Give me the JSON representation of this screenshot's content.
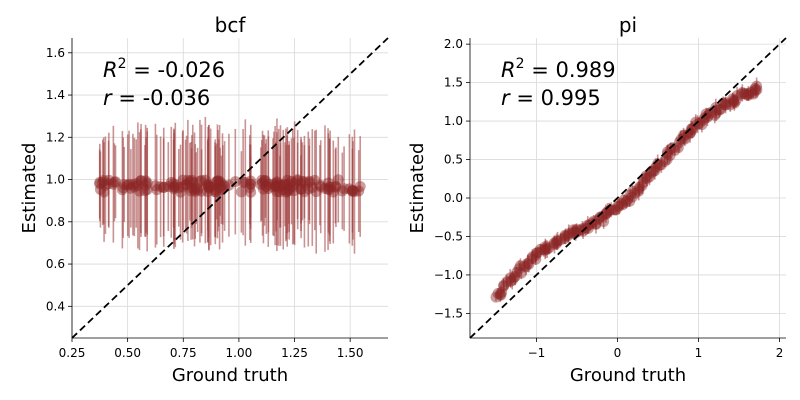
{
  "colors": {
    "point": "#8b2525",
    "errorbar": "#9e3a3a",
    "diagonal": "#000000",
    "grid": "#d9d9d9"
  },
  "chart_data": [
    {
      "type": "scatter",
      "title": "bcf",
      "xlabel": "Ground truth",
      "ylabel": "Estimated",
      "xlim": [
        0.25,
        1.67
      ],
      "ylim": [
        0.25,
        1.67
      ],
      "xticks": [
        0.25,
        0.5,
        0.75,
        1.0,
        1.25,
        1.5
      ],
      "xtick_labels": [
        "0.25",
        "0.50",
        "0.75",
        "1.00",
        "1.25",
        "1.50"
      ],
      "yticks": [
        0.4,
        0.6,
        0.8,
        1.0,
        1.2,
        1.4,
        1.6
      ],
      "ytick_labels": [
        "0.4",
        "0.6",
        "0.8",
        "1.0",
        "1.2",
        "1.4",
        "1.6"
      ],
      "grid": true,
      "identity_line": true,
      "annotation_r2_prefix": "R",
      "annotation_r2_sup": "2",
      "annotation_r2_value": " = -0.026",
      "annotation_r_prefix": "r",
      "annotation_r_value": " = -0.036",
      "points": {
        "x_range": [
          0.37,
          1.55
        ],
        "y_center": 0.97,
        "y_spread": 0.03,
        "err_range": [
          0.16,
          0.3
        ],
        "count": 160
      }
    },
    {
      "type": "scatter",
      "title": "pi",
      "xlabel": "Ground truth",
      "ylabel": "Estimated",
      "xlim": [
        -1.82,
        2.08
      ],
      "ylim": [
        -1.82,
        2.08
      ],
      "xticks": [
        -1,
        0,
        1,
        2
      ],
      "xtick_labels": [
        "−1",
        "0",
        "1",
        "2"
      ],
      "yticks": [
        -1.5,
        -1.0,
        -0.5,
        0.0,
        0.5,
        1.0,
        1.5,
        2.0
      ],
      "ytick_labels": [
        "−1.5",
        "−1.0",
        "−0.5",
        "0.0",
        "0.5",
        "1.0",
        "1.5",
        "2.0"
      ],
      "grid": true,
      "identity_line": true,
      "annotation_r2_prefix": "R",
      "annotation_r2_sup": "2",
      "annotation_r2_value": " = 0.989",
      "annotation_r_prefix": "r",
      "annotation_r_value": " = 0.995",
      "points": {
        "x_range": [
          -1.5,
          1.75
        ],
        "y_at_xmin": -1.3,
        "y_at_xmax": 1.5,
        "err_range": [
          0.05,
          0.12
        ],
        "count": 160
      }
    }
  ]
}
